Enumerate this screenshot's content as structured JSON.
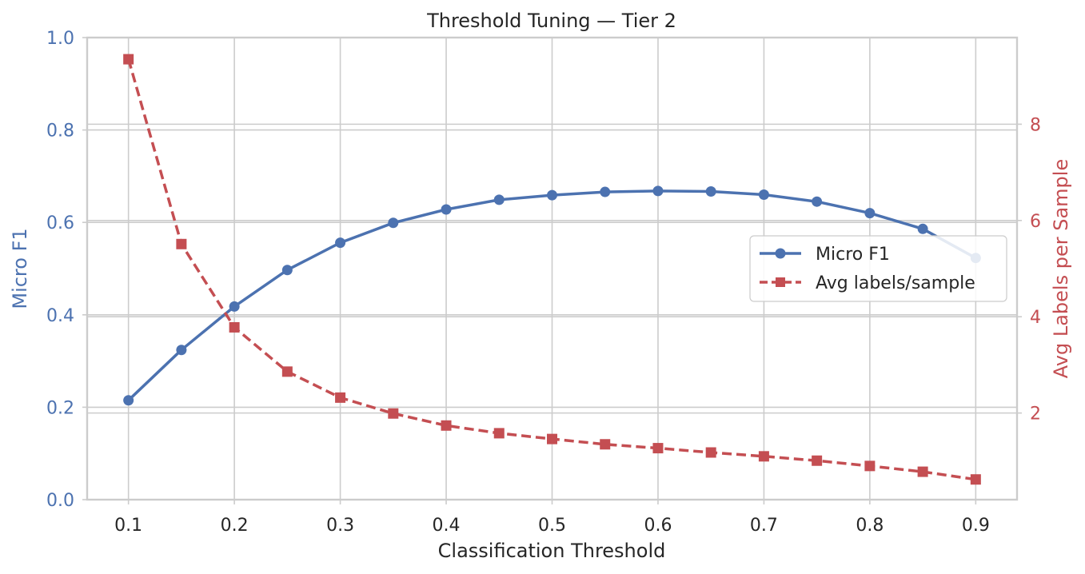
{
  "chart_data": {
    "type": "line",
    "title": "Threshold Tuning — Tier 2",
    "xlabel": "Classification Threshold",
    "ylabel_left": "Micro F1",
    "ylabel_right": "Avg Labels per Sample",
    "x": [
      0.1,
      0.15,
      0.2,
      0.25,
      0.3,
      0.35,
      0.4,
      0.45,
      0.5,
      0.55,
      0.6,
      0.65,
      0.7,
      0.75,
      0.8,
      0.85,
      0.9
    ],
    "x_ticks": [
      "0.1",
      "0.2",
      "0.3",
      "0.4",
      "0.5",
      "0.6",
      "0.7",
      "0.8",
      "0.9"
    ],
    "xlim": [
      0.061,
      0.939
    ],
    "ylim_left": [
      0.0,
      1.0
    ],
    "left_ticks": [
      "0.0",
      "0.2",
      "0.4",
      "0.6",
      "0.8",
      "1.0"
    ],
    "ylim_right": [
      0.2,
      9.8
    ],
    "right_ticks": [
      "2",
      "4",
      "6",
      "8"
    ],
    "grid": true,
    "legend_position": "center-right",
    "series": [
      {
        "name": "Micro F1",
        "axis": "left",
        "color": "#4c72b0",
        "marker": "circle",
        "linestyle": "solid",
        "values": [
          0.215,
          0.324,
          0.418,
          0.497,
          0.556,
          0.599,
          0.628,
          0.649,
          0.659,
          0.666,
          0.668,
          0.667,
          0.66,
          0.645,
          0.62,
          0.586,
          0.523
        ]
      },
      {
        "name": "Avg labels/sample",
        "axis": "right",
        "color": "#c44e52",
        "marker": "square",
        "linestyle": "dashed",
        "values": [
          9.35,
          5.51,
          3.78,
          2.86,
          2.32,
          1.99,
          1.74,
          1.58,
          1.46,
          1.35,
          1.27,
          1.18,
          1.1,
          1.01,
          0.9,
          0.78,
          0.62
        ]
      }
    ]
  }
}
